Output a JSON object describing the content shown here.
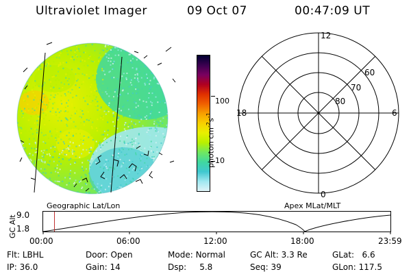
{
  "header": {
    "title": "Ultraviolet Imager",
    "date": "09 Oct 07",
    "time": "00:47:09 UT"
  },
  "colorbar": {
    "label": "photon cm",
    "label_sup1": "-2",
    "label_mid": "s",
    "label_sup2": "-1",
    "ticks": [
      "100",
      "10"
    ],
    "scale": "log",
    "colors": [
      "#000030",
      "#3a0050",
      "#7a0060",
      "#b00020",
      "#e03000",
      "#f06000",
      "#f8a000",
      "#f8d000",
      "#e8f000",
      "#b8f000",
      "#70e860",
      "#40d8a0",
      "#40c8d0",
      "#a0e8f0",
      "#e0f4f8"
    ]
  },
  "left_panel": {
    "caption": "Geographic Lat/Lon"
  },
  "right_panel": {
    "caption": "Apex MLat/MLT",
    "mlt_labels": {
      "top": "12",
      "left": "18",
      "right": "6",
      "bottom": "0"
    },
    "lat_labels": [
      "60",
      "70",
      "80"
    ]
  },
  "altitude_plot": {
    "ylabel": "GC Alt",
    "yticks": [
      "9.0",
      "1.8"
    ],
    "xticks": [
      "00:00",
      "06:00",
      "12:00",
      "18:00",
      "23:59"
    ],
    "marker_time": "00:47",
    "marker_color": "#c03030"
  },
  "status": {
    "row1": [
      {
        "key": "Flt:",
        "value": "LBHL"
      },
      {
        "key": "Door:",
        "value": "Open"
      },
      {
        "key": "Mode:",
        "value": "Normal"
      },
      {
        "key": "GC Alt:",
        "value": "3.3 Re"
      },
      {
        "key": "GLat:",
        "value": "6.6"
      }
    ],
    "row2": [
      {
        "key": "IP:",
        "value": "36.0"
      },
      {
        "key": "Gain:",
        "value": "14"
      },
      {
        "key": "Dsp:",
        "value": "5.8"
      },
      {
        "key": "Seq:",
        "value": "39"
      },
      {
        "key": "GLon:",
        "value": "117.5"
      }
    ]
  }
}
